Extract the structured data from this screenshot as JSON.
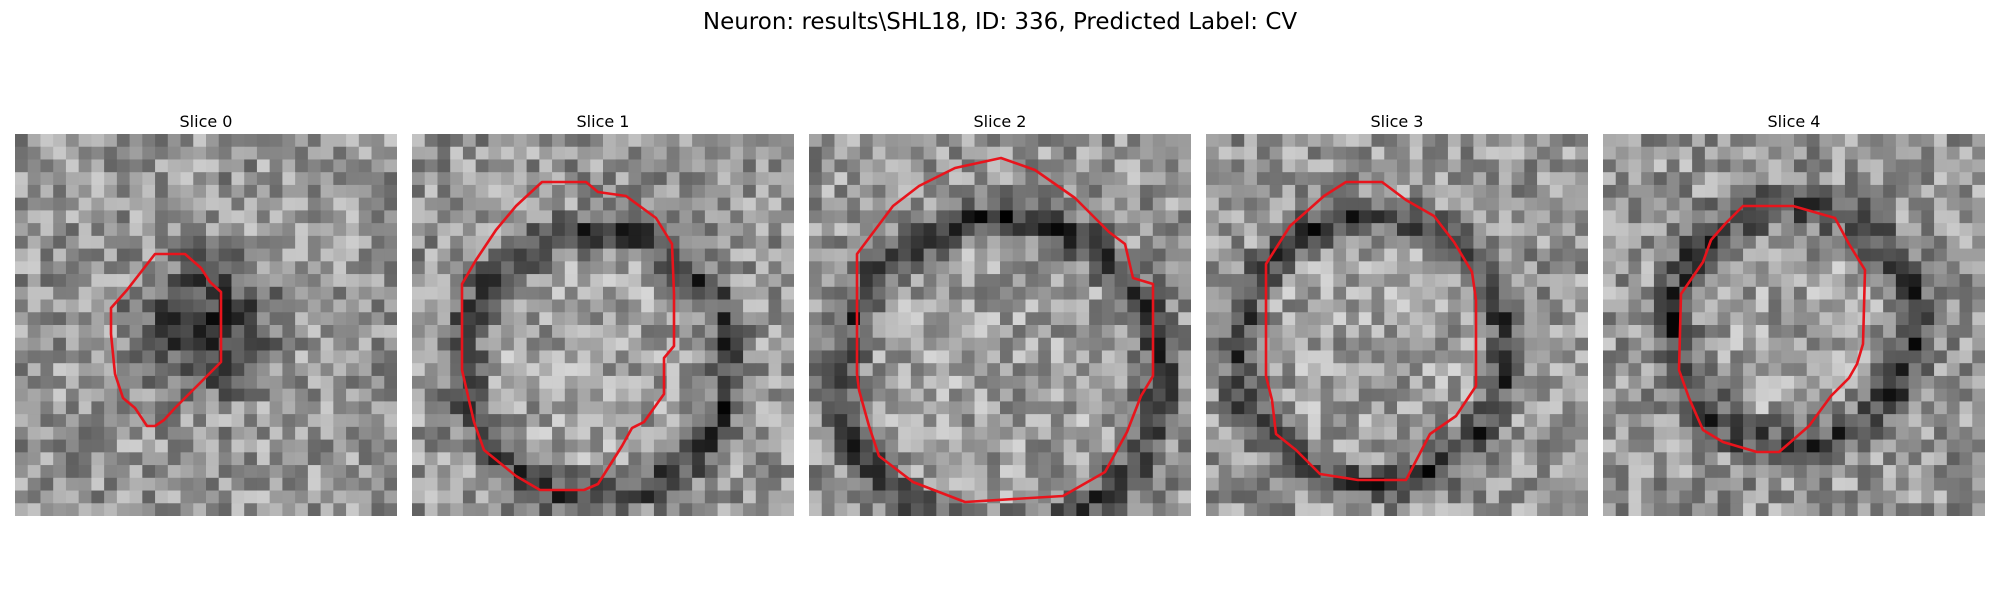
{
  "figure": {
    "suptitle": "Neuron: results\\SHL18, ID: 336, Predicted Label: CV"
  },
  "panels": [
    {
      "title": "Slice 0"
    },
    {
      "title": "Slice 1"
    },
    {
      "title": "Slice 2"
    },
    {
      "title": "Slice 3"
    },
    {
      "title": "Slice 4"
    }
  ],
  "colors": {
    "contour": "#e8141c",
    "background": "#ffffff"
  }
}
